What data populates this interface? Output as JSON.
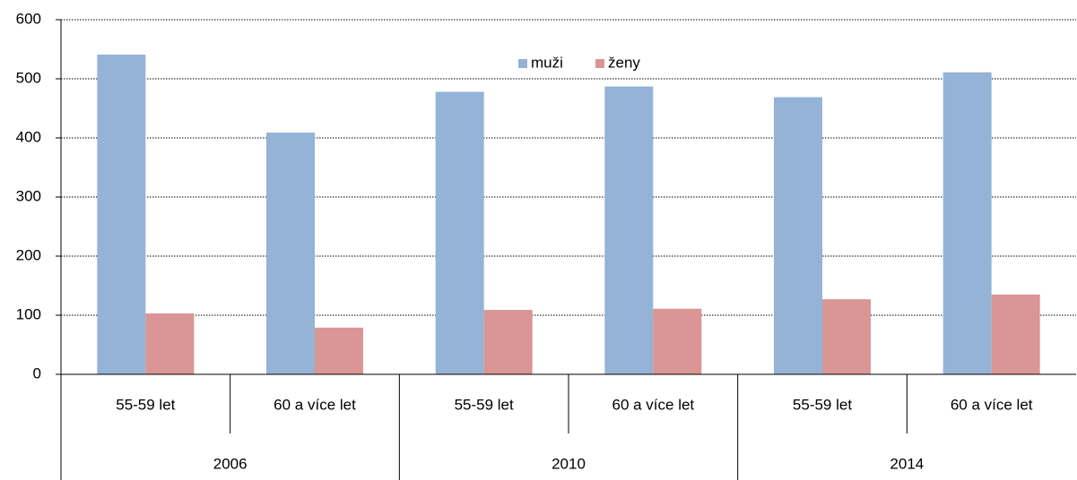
{
  "chart_data": {
    "type": "bar",
    "categories": [
      "55-59 let",
      "60 a více let",
      "55-59 let",
      "60 a více let",
      "55-59 let",
      "60 a více let"
    ],
    "category_groups": [
      "2006",
      "2010",
      "2014"
    ],
    "series": [
      {
        "name": "muži",
        "color": "#95b3d7",
        "values": [
          541,
          409,
          478,
          487,
          469,
          511
        ]
      },
      {
        "name": "ženy",
        "color": "#d99694",
        "values": [
          103,
          79,
          109,
          111,
          127,
          135
        ]
      }
    ],
    "ylim": [
      0,
      600
    ],
    "yticks": [
      0,
      100,
      200,
      300,
      400,
      500,
      600
    ],
    "grid": true,
    "legend": "top"
  }
}
